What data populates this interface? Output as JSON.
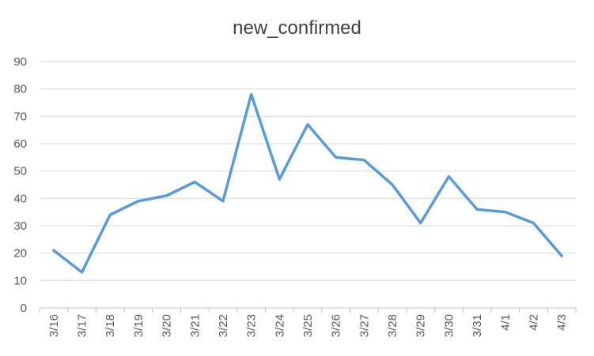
{
  "chart_data": {
    "type": "line",
    "title": "new_confirmed",
    "xlabel": "",
    "ylabel": "",
    "categories": [
      "3/16",
      "3/17",
      "3/18",
      "3/19",
      "3/20",
      "3/21",
      "3/22",
      "3/23",
      "3/24",
      "3/25",
      "3/26",
      "3/27",
      "3/28",
      "3/29",
      "3/30",
      "3/31",
      "4/1",
      "4/2",
      "4/3"
    ],
    "series": [
      {
        "values": [
          21,
          13,
          34,
          39,
          41,
          46,
          39,
          78,
          47,
          67,
          55,
          54,
          45,
          31,
          48,
          36,
          35,
          31,
          19
        ],
        "color": "#5B9BD5"
      }
    ],
    "ylim": [
      0,
      90
    ],
    "yticks": [
      0,
      10,
      20,
      30,
      40,
      50,
      60,
      70,
      80,
      90
    ],
    "grid": true,
    "legend": "none",
    "colors": {
      "line": "#5B9BD5",
      "grid": "#D9D9D9",
      "axis": "#BFBFBF",
      "text": "#595959"
    }
  }
}
